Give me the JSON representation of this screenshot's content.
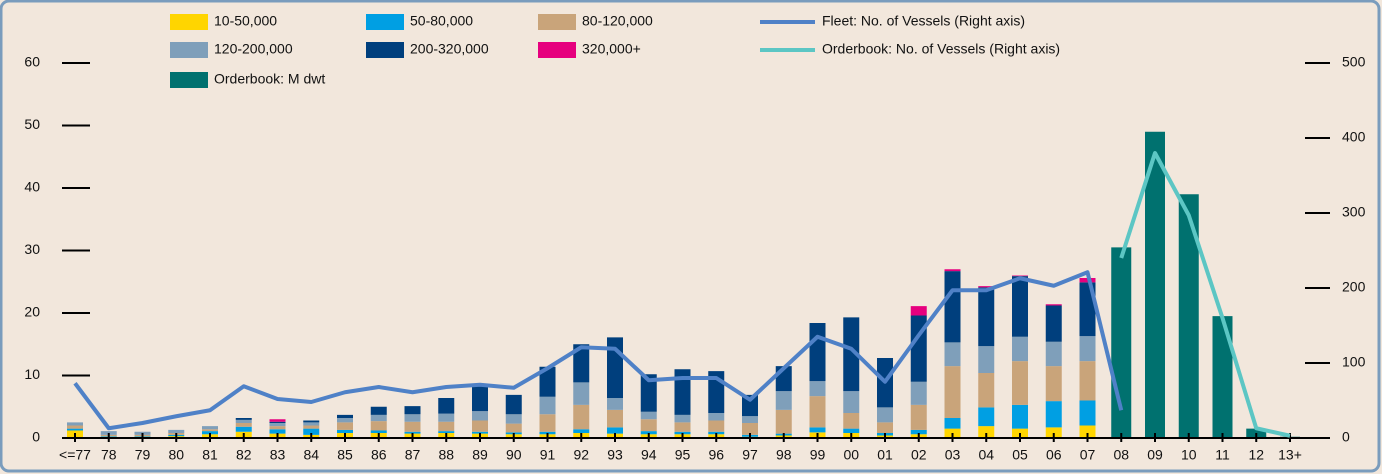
{
  "chart_data": {
    "type": "bar",
    "stacked": true,
    "categories": [
      "<=77",
      "78",
      "79",
      "80",
      "81",
      "82",
      "83",
      "84",
      "85",
      "86",
      "87",
      "88",
      "89",
      "90",
      "91",
      "92",
      "93",
      "94",
      "95",
      "96",
      "97",
      "98",
      "99",
      "00",
      "01",
      "02",
      "03",
      "04",
      "05",
      "06",
      "07",
      "08",
      "09",
      "10",
      "11",
      "12",
      "13+"
    ],
    "ylim": [
      0,
      60
    ],
    "yticks": [
      0,
      10,
      20,
      30,
      40,
      50,
      60
    ],
    "y2lim": [
      0,
      500
    ],
    "y2ticks": [
      0,
      100,
      200,
      300,
      400,
      500
    ],
    "series": [
      {
        "name": "10-50,000",
        "type": "stacked_bar",
        "color": "#ffd500",
        "values": [
          1.2,
          0.2,
          0.2,
          0.3,
          0.6,
          1.0,
          0.7,
          0.5,
          0.8,
          0.8,
          0.7,
          0.8,
          0.7,
          0.6,
          0.6,
          0.8,
          0.7,
          0.6,
          0.6,
          0.6,
          0.2,
          0.4,
          0.9,
          0.8,
          0.4,
          0.6,
          1.5,
          1.9,
          1.5,
          1.7,
          2.0,
          0.3,
          null,
          null,
          null,
          null,
          null
        ]
      },
      {
        "name": "50-80,000",
        "type": "stacked_bar",
        "color": "#009fe3",
        "values": [
          0.3,
          0.1,
          0.1,
          0.2,
          0.5,
          0.8,
          0.7,
          1.0,
          0.5,
          0.4,
          0.3,
          0.3,
          0.3,
          0.3,
          0.4,
          0.6,
          1.0,
          0.5,
          0.4,
          0.4,
          0.3,
          0.3,
          0.8,
          0.7,
          0.4,
          0.7,
          1.7,
          3.0,
          3.8,
          4.2,
          4.0,
          0.5,
          null,
          null,
          null,
          null,
          null
        ]
      },
      {
        "name": "80-120,000",
        "type": "stacked_bar",
        "color": "#c9a47a",
        "values": [
          0.5,
          0.2,
          0.2,
          0.3,
          0.3,
          0.6,
          0.5,
          0.5,
          1.2,
          1.5,
          1.6,
          1.5,
          1.8,
          1.4,
          2.8,
          3.9,
          2.8,
          1.9,
          1.5,
          1.8,
          1.9,
          3.8,
          5.0,
          2.5,
          1.7,
          4.0,
          8.3,
          5.5,
          7.0,
          5.6,
          6.3,
          0.9,
          null,
          null,
          null,
          null,
          null
        ]
      },
      {
        "name": "120-200,000",
        "type": "stacked_bar",
        "color": "#7f9fba",
        "values": [
          0.5,
          0.6,
          0.5,
          0.5,
          0.5,
          0.5,
          0.5,
          0.5,
          0.7,
          1.0,
          1.2,
          1.3,
          1.5,
          1.5,
          2.8,
          3.6,
          1.9,
          1.2,
          1.2,
          1.2,
          1.1,
          3.0,
          2.4,
          3.5,
          2.4,
          3.7,
          3.8,
          4.3,
          3.9,
          3.9,
          4.0,
          0.6,
          null,
          null,
          null,
          null,
          null
        ]
      },
      {
        "name": "200-320,000",
        "type": "stacked_bar",
        "color": "#003f7d",
        "values": [
          0,
          0,
          0,
          0,
          0,
          0.3,
          0.2,
          0.3,
          0.5,
          1.3,
          1.3,
          2.5,
          4.2,
          3.1,
          4.8,
          6.1,
          9.7,
          6.0,
          7.3,
          6.7,
          3.4,
          4.0,
          9.3,
          11.8,
          7.9,
          10.6,
          11.4,
          9.4,
          9.7,
          5.8,
          8.6,
          0.6,
          null,
          null,
          null,
          null,
          null
        ]
      },
      {
        "name": "320,000+",
        "type": "stacked_bar",
        "color": "#e6007e",
        "values": [
          0,
          0,
          0,
          0,
          0,
          0,
          0.4,
          0,
          0,
          0,
          0,
          0,
          0,
          0,
          0,
          0,
          0,
          0,
          0,
          0,
          0,
          0,
          0,
          0,
          0,
          1.5,
          0.3,
          0.2,
          0.1,
          0.2,
          0.7,
          0,
          null,
          null,
          null,
          null,
          null
        ]
      },
      {
        "name": "Orderbook: M dwt",
        "type": "bar",
        "color": "#00716f",
        "values": [
          null,
          null,
          null,
          null,
          null,
          null,
          null,
          null,
          null,
          null,
          null,
          null,
          null,
          null,
          null,
          null,
          null,
          null,
          null,
          null,
          null,
          null,
          null,
          null,
          null,
          null,
          null,
          null,
          null,
          null,
          null,
          30.5,
          49,
          39,
          19.5,
          1.5,
          0.2
        ]
      },
      {
        "name": "Fleet: No. of Vessels (Right axis)",
        "type": "line",
        "axis": "y2",
        "color": "#4f81c7",
        "values": [
          73,
          13,
          20,
          29,
          37,
          69,
          52,
          48,
          61,
          68,
          61,
          68,
          71,
          67,
          93,
          121,
          119,
          77,
          80,
          80,
          51,
          93,
          135,
          119,
          75,
          137,
          197,
          197,
          213,
          203,
          221,
          37,
          null,
          null,
          null,
          null,
          null
        ]
      },
      {
        "name": "Orderbook: No. of Vessels (Right axis)",
        "type": "line",
        "axis": "y2",
        "color": "#5cc6c4",
        "values": [
          null,
          null,
          null,
          null,
          null,
          null,
          null,
          null,
          null,
          null,
          null,
          null,
          null,
          null,
          null,
          null,
          null,
          null,
          null,
          null,
          null,
          null,
          null,
          null,
          null,
          null,
          null,
          null,
          null,
          null,
          null,
          240,
          380,
          297,
          160,
          13,
          3
        ]
      }
    ]
  }
}
